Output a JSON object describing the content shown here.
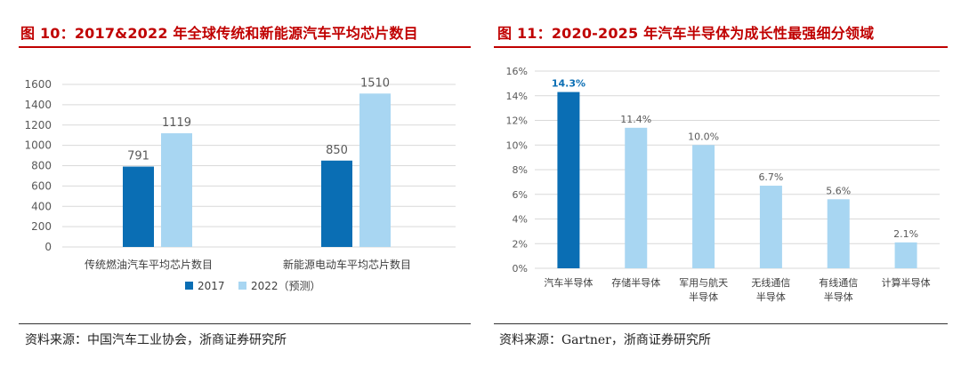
{
  "left": {
    "title": "图 10：2017&2022 年全球传统和新能源汽车平均芯片数目",
    "source": "资料来源：中国汽车工业协会，浙商证券研究所",
    "chart_data": {
      "type": "bar",
      "categories": [
        "传统燃油汽车平均芯片数目",
        "新能源电动车平均芯片数目"
      ],
      "series": [
        {
          "name": "2017",
          "values": [
            791,
            850
          ],
          "color": "#0a6eb4"
        },
        {
          "name": "2022（预测）",
          "values": [
            1119,
            1510
          ],
          "color": "#a8d6f2"
        }
      ],
      "yticks": [
        0,
        200,
        400,
        600,
        800,
        1000,
        1200,
        1400,
        1600
      ],
      "ylim": [
        0,
        1600
      ],
      "grid": true,
      "legend": "bottom-center"
    }
  },
  "right": {
    "title": "图 11：2020-2025 年汽车半导体为成长性最强细分领域",
    "source": "资料来源：Gartner，浙商证券研究所",
    "chart_data": {
      "type": "bar",
      "categories": [
        [
          "汽车半导体"
        ],
        [
          "存储半导体"
        ],
        [
          "军用与航天",
          "半导体"
        ],
        [
          "无线通信",
          "半导体"
        ],
        [
          "有线通信",
          "半导体"
        ],
        [
          "计算半导体"
        ]
      ],
      "values": [
        14.3,
        11.4,
        10.0,
        6.7,
        5.6,
        2.1
      ],
      "data_labels": [
        "14.3%",
        "11.4%",
        "10.0%",
        "6.7%",
        "5.6%",
        "2.1%"
      ],
      "colors": [
        "#0a6eb4",
        "#a8d6f2",
        "#a8d6f2",
        "#a8d6f2",
        "#a8d6f2",
        "#a8d6f2"
      ],
      "highlight_label_color": "#0a6eb4",
      "yticks": [
        "0%",
        "2%",
        "4%",
        "6%",
        "8%",
        "10%",
        "12%",
        "14%",
        "16%"
      ],
      "ylim": [
        0,
        16
      ],
      "grid": true
    }
  }
}
